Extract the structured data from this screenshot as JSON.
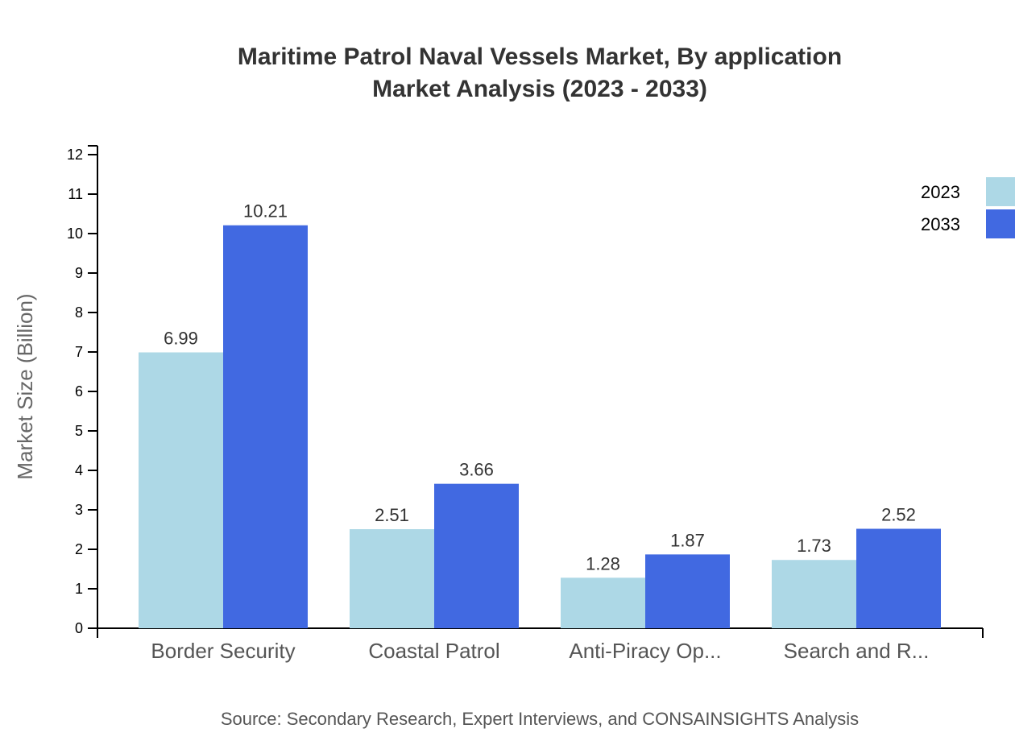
{
  "chart_data": {
    "type": "bar",
    "title": "Maritime Patrol Naval Vessels Market, By application",
    "subtitle": "Market Analysis (2023 - 2033)",
    "xlabel": "",
    "ylabel": "Market Size (Billion)",
    "ylim": [
      0,
      12
    ],
    "yticks": [
      0,
      1,
      2,
      3,
      4,
      5,
      6,
      7,
      8,
      9,
      10,
      11,
      12
    ],
    "categories": [
      "Border Security",
      "Coastal Patrol",
      "Anti-Piracy Op...",
      "Search and R..."
    ],
    "series": [
      {
        "name": "2023",
        "color": "#ADD8E6",
        "values": [
          6.99,
          2.51,
          1.28,
          1.73
        ]
      },
      {
        "name": "2033",
        "color": "#4169E1",
        "values": [
          10.21,
          3.66,
          1.87,
          2.52
        ]
      }
    ],
    "legend_position": "top-right",
    "grid": false,
    "source": "Source: Secondary Research, Expert Interviews, and CONSAINSIGHTS Analysis"
  }
}
